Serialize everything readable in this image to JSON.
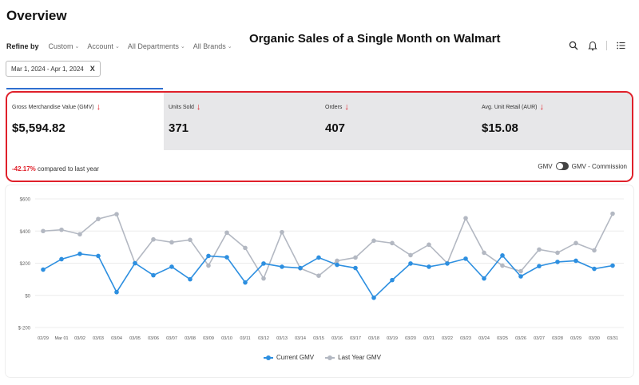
{
  "page": {
    "title": "Overview",
    "overlay_title": "Organic Sales of a Single Month on Walmart"
  },
  "filters": {
    "refine_label": "Refine by",
    "items": [
      {
        "label": "Custom"
      },
      {
        "label": "Account"
      },
      {
        "label": "All Departments"
      },
      {
        "label": "All Brands"
      }
    ],
    "date_range": "Mar 1, 2024 - Apr 1, 2024",
    "clear_symbol": "X"
  },
  "icons": {
    "search": "search-icon",
    "bell": "bell-icon",
    "menu": "menu-icon"
  },
  "kpis": [
    {
      "label": "Gross Merchandise Value (GMV)",
      "value": "$5,594.82",
      "trend": "down",
      "active": true
    },
    {
      "label": "Units Sold",
      "value": "371",
      "trend": "down",
      "active": false
    },
    {
      "label": "Orders",
      "value": "407",
      "trend": "down",
      "active": false
    },
    {
      "label": "Avg. Unit Retail (AUR)",
      "value": "$15.08",
      "trend": "down",
      "active": false
    }
  ],
  "comparison": {
    "pct": "-42.17%",
    "text": "compared to last year"
  },
  "toggle": {
    "left_label": "GMV",
    "right_label": "GMV - Commission"
  },
  "colors": {
    "current": "#2d8fe0",
    "last_year": "#b3b8c2",
    "accent": "#e0202a",
    "tab_underline": "#2f6fd0"
  },
  "chart_data": {
    "type": "line",
    "x": [
      "02/29",
      "Mar 01",
      "03/02",
      "03/03",
      "03/04",
      "03/05",
      "03/06",
      "03/07",
      "03/08",
      "03/09",
      "03/10",
      "03/11",
      "03/12",
      "03/13",
      "03/14",
      "03/15",
      "03/16",
      "03/17",
      "03/18",
      "03/19",
      "03/20",
      "03/21",
      "03/22",
      "03/23",
      "03/24",
      "03/25",
      "03/26",
      "03/27",
      "03/28",
      "03/29",
      "03/30",
      "03/31"
    ],
    "ylim": [
      -200,
      600
    ],
    "yticks": [
      "$600",
      "$400",
      "$200",
      "$0",
      "$-200"
    ],
    "ytick_values": [
      600,
      400,
      200,
      0,
      -200
    ],
    "grid": true,
    "legend_position": "bottom",
    "series": [
      {
        "name": "Current GMV",
        "color_key": "current",
        "values": [
          160,
          225,
          258,
          245,
          20,
          200,
          125,
          178,
          100,
          245,
          237,
          80,
          198,
          178,
          170,
          235,
          190,
          170,
          -15,
          95,
          198,
          178,
          198,
          228,
          105,
          248,
          118,
          182,
          208,
          215,
          165,
          185
        ]
      },
      {
        "name": "Last Year GMV",
        "color_key": "last_year",
        "values": [
          400,
          408,
          380,
          475,
          505,
          200,
          348,
          330,
          345,
          185,
          390,
          295,
          105,
          393,
          168,
          122,
          215,
          235,
          340,
          325,
          250,
          315,
          200,
          480,
          265,
          185,
          150,
          285,
          265,
          325,
          280,
          508
        ]
      }
    ]
  }
}
